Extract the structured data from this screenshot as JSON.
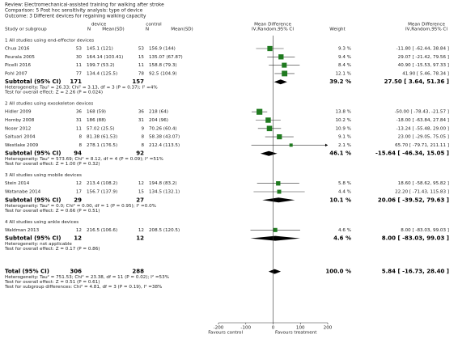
{
  "header": {
    "review": "Review:  Electromechanical-assisted training for walking after stroke",
    "comparison": "Comparison:  5 Post hoc sensitivity analysis: type of device",
    "outcome": "Outcome:  3 Different devices for regaining walking capacity"
  },
  "chart_data": {
    "type": "forest",
    "columns": {
      "study": "Study or subgroup",
      "group1": "device",
      "group2": "control",
      "n1": "N",
      "mean1": "Mean(SD)",
      "n2": "N",
      "mean2": "Mean(SD)",
      "effect": "Mean Difference",
      "effect_sub": "IV,Random,95% CI",
      "weight": "Weight",
      "effect_right": "Mean Difference",
      "effect_right_sub": "IV,Random,95% CI"
    },
    "color": "#1f7a1f",
    "xlim": [
      -200,
      200
    ],
    "xticks": [
      -200,
      -100,
      0,
      100,
      200
    ],
    "xlabel_left": "Favours control",
    "xlabel_right": "Favours treatment",
    "subgroups": [
      {
        "title": "1 All studies using end-effector devices",
        "studies": [
          {
            "name": "Chua 2016",
            "n1": 53,
            "m1": "145.1 (121)",
            "n2": 53,
            "m2": "156.9 (144)",
            "weight": 9.3,
            "weight_label": "9.3 %",
            "md": -11.8,
            "lo": -62.44,
            "hi": 38.84,
            "ci_label": "-11.80 [ -62.44, 38.84 ]"
          },
          {
            "name": "Peurala 2005",
            "n1": 30,
            "m1": "164.14 (103.41)",
            "n2": 15,
            "m2": "135.07 (67.87)",
            "weight": 9.4,
            "weight_label": "9.4 %",
            "md": 29.07,
            "lo": -21.42,
            "hi": 79.56,
            "ci_label": "29.07 [ -21.42, 79.56 ]"
          },
          {
            "name": "Picelli 2016",
            "n1": 11,
            "m1": "199.7 (53.2)",
            "n2": 11,
            "m2": "158.8 (79.3)",
            "weight": 8.4,
            "weight_label": "8.4 %",
            "md": 40.9,
            "lo": -15.53,
            "hi": 97.33,
            "ci_label": "40.90 [ -15.53, 97.33 ]"
          },
          {
            "name": "Pohl 2007",
            "n1": 77,
            "m1": "134.4 (125.5)",
            "n2": 78,
            "m2": "92.5 (104.9)",
            "weight": 12.1,
            "weight_label": "12.1 %",
            "md": 41.9,
            "lo": 5.46,
            "hi": 78.34,
            "ci_label": "41.90 [ 5.46, 78.34 ]"
          }
        ],
        "subtotal": {
          "label": "Subtotal (95% CI)",
          "n1": 171,
          "n2": 157,
          "weight": 39.2,
          "weight_label": "39.2 %",
          "md": 27.5,
          "lo": 3.64,
          "hi": 51.36,
          "ci_label": "27.50 [ 3.64, 51.36 ]"
        },
        "notes": [
          "Heterogeneity: Tau² = 26.33; Chi² = 3.13, df = 3 (P = 0.37); I² =4%",
          "Test for overall effect: Z = 2.26 (P = 0.024)"
        ]
      },
      {
        "title": "2 All studies using exoskeleton devices",
        "studies": [
          {
            "name": "Hidler 2009",
            "n1": 36,
            "m1": "168 (59)",
            "n2": 36,
            "m2": "218 (64)",
            "weight": 13.8,
            "weight_label": "13.8 %",
            "md": -50,
            "lo": -78.43,
            "hi": -21.57,
            "ci_label": "-50.00 [ -78.43, -21.57 ]"
          },
          {
            "name": "Hornby 2008",
            "n1": 31,
            "m1": "186 (88)",
            "n2": 31,
            "m2": "204 (96)",
            "weight": 10.2,
            "weight_label": "10.2 %",
            "md": -18,
            "lo": -63.84,
            "hi": 27.84,
            "ci_label": "-18.00 [ -63.84, 27.84 ]"
          },
          {
            "name": "Noser 2012",
            "n1": 11,
            "m1": "57.02 (25.5)",
            "n2": 9,
            "m2": "70.26 (60.4)",
            "weight": 10.9,
            "weight_label": "10.9 %",
            "md": -13.24,
            "lo": -55.48,
            "hi": 29,
            "ci_label": "-13.24 [ -55.48, 29.00 ]"
          },
          {
            "name": "Saltuari 2004",
            "n1": 8,
            "m1": "81.38 (61.53)",
            "n2": 8,
            "m2": "58.38 (43.07)",
            "weight": 9.1,
            "weight_label": "9.1 %",
            "md": 23,
            "lo": -29.05,
            "hi": 75.05,
            "ci_label": "23.00 [ -29.05, 75.05 ]"
          },
          {
            "name": "Westlake 2009",
            "n1": 8,
            "m1": "278.1 (176.5)",
            "n2": 8,
            "m2": "212.4 (113.5)",
            "weight": 2.1,
            "weight_label": "2.1 %",
            "md": 65.7,
            "lo": -79.71,
            "hi": 211.11,
            "ci_label": "65.70 [ -79.71, 211.11 ]"
          }
        ],
        "subtotal": {
          "label": "Subtotal (95% CI)",
          "n1": 94,
          "n2": 92,
          "weight": 46.1,
          "weight_label": "46.1 %",
          "md": -15.64,
          "lo": -46.34,
          "hi": 15.05,
          "ci_label": "-15.64 [ -46.34, 15.05 ]"
        },
        "notes": [
          "Heterogeneity: Tau² = 573.69; Chi² = 8.12, df = 4 (P = 0.09); I² =51%",
          "Test for overall effect: Z = 1.00 (P = 0.32)"
        ]
      },
      {
        "title": "3 All studies using mobile devices",
        "studies": [
          {
            "name": "Stein 2014",
            "n1": 12,
            "m1": "213.4 (108.2)",
            "n2": 12,
            "m2": "194.8 (83.2)",
            "weight": 5.8,
            "weight_label": "5.8 %",
            "md": 18.6,
            "lo": -58.62,
            "hi": 95.82,
            "ci_label": "18.60 [ -58.62, 95.82 ]"
          },
          {
            "name": "Watanabe 2014",
            "n1": 17,
            "m1": "156.7 (137.9)",
            "n2": 15,
            "m2": "134.5 (132.1)",
            "weight": 4.4,
            "weight_label": "4.4 %",
            "md": 22.2,
            "lo": -71.43,
            "hi": 115.83,
            "ci_label": "22.20 [ -71.43, 115.83 ]"
          }
        ],
        "subtotal": {
          "label": "Subtotal (95% CI)",
          "n1": 29,
          "n2": 27,
          "weight": 10.1,
          "weight_label": "10.1 %",
          "md": 20.06,
          "lo": -39.52,
          "hi": 79.63,
          "ci_label": "20.06 [ -39.52, 79.63 ]"
        },
        "notes": [
          "Heterogeneity: Tau² = 0.0; Chi² = 0.00, df = 1 (P = 0.95); I² =0.0%",
          "Test for overall effect: Z = 0.66 (P = 0.51)"
        ]
      },
      {
        "title": "4 All studies using ankle devices",
        "studies": [
          {
            "name": "Waldman 2013",
            "n1": 12,
            "m1": "216.5 (106.6)",
            "n2": 12,
            "m2": "208.5 (120.5)",
            "weight": 4.6,
            "weight_label": "4.6 %",
            "md": 8,
            "lo": -83.03,
            "hi": 99.03,
            "ci_label": "8.00 [ -83.03, 99.03 ]"
          }
        ],
        "subtotal": {
          "label": "Subtotal (95% CI)",
          "n1": 12,
          "n2": 12,
          "weight": 4.6,
          "weight_label": "4.6 %",
          "md": 8,
          "lo": -83.03,
          "hi": 99.03,
          "ci_label": "8.00 [ -83.03, 99.03 ]"
        },
        "notes": [
          "Heterogeneity: not applicable",
          "Test for overall effect: Z = 0.17 (P = 0.86)"
        ]
      }
    ],
    "total": {
      "label": "Total (95% CI)",
      "n1": 306,
      "n2": 288,
      "weight": 100,
      "weight_label": "100.0 %",
      "md": 5.84,
      "lo": -16.73,
      "hi": 28.4,
      "ci_label": "5.84 [ -16.73, 28.40 ]"
    },
    "total_notes": [
      "Heterogeneity: Tau² = 751.53; Chi² = 23.38, df = 11 (P = 0.02); I² =53%",
      "Test for overall effect: Z = 0.51 (P = 0.61)",
      "Test for subgroup differences: Chi² = 4.81, df = 3 (P = 0.19), I² =38%"
    ]
  }
}
